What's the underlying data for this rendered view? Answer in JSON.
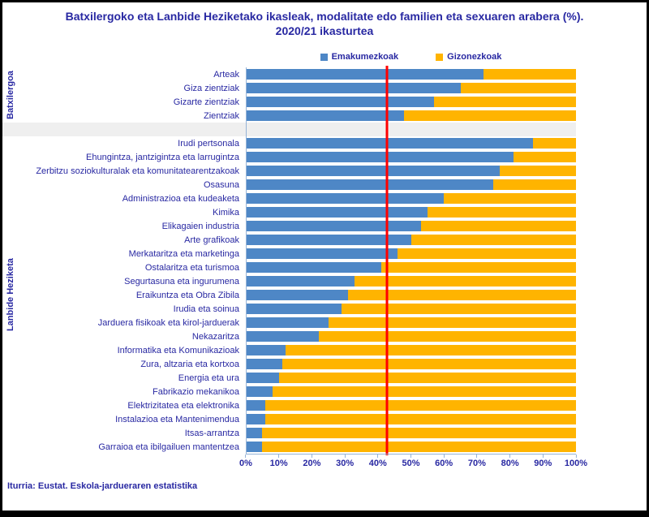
{
  "title": {
    "line1": "Batxilergoko eta Lanbide Heziketako ikasleak, modalitate edo familien eta sexuaren arabera (%).",
    "line2": "2020/21 ikasturtea"
  },
  "legend": [
    {
      "label": "Emakumezkoak",
      "color": "#4E87C6"
    },
    {
      "label": "Gizonezkoak",
      "color": "#FFB400"
    }
  ],
  "footer": "Iturria: Eustat. Eskola-jardueraren estatistika",
  "colors": {
    "text": "#2828A2",
    "axis": "#95B3D7",
    "reference_line": "#FF0000",
    "emakumezkoak": "#4E87C6",
    "gizonezkoak": "#FFB400"
  },
  "chart_data": {
    "type": "bar",
    "orientation": "horizontal",
    "stacked_percent": true,
    "title": "Batxilergoko eta Lanbide Heziketako ikasleak, modalitate edo familien eta sexuaren arabera (%). 2020/21 ikasturtea",
    "legend_position": "top",
    "series": [
      {
        "name": "Emakumezkoak",
        "color": "#4E87C6"
      },
      {
        "name": "Gizonezkoak",
        "color": "#FFB400"
      }
    ],
    "x_axis": {
      "min": 0,
      "max": 100,
      "ticks": [
        "0%",
        "10%",
        "20%",
        "30%",
        "40%",
        "50%",
        "60%",
        "70%",
        "80%",
        "90%",
        "100%"
      ]
    },
    "reference_line": {
      "value": 42.5,
      "color": "#FF0000"
    },
    "groups": [
      {
        "name": "Batxilergoa",
        "rows": [
          {
            "label": "Arteak",
            "emakumezkoak": 72,
            "gizonezkoak": 28
          },
          {
            "label": "Giza zientziak",
            "emakumezkoak": 65,
            "gizonezkoak": 35
          },
          {
            "label": "Gizarte zientziak",
            "emakumezkoak": 57,
            "gizonezkoak": 43
          },
          {
            "label": "Zientziak",
            "emakumezkoak": 48,
            "gizonezkoak": 52
          }
        ]
      },
      {
        "name": "Lanbide Heziketa",
        "rows": [
          {
            "label": "Irudi pertsonala",
            "emakumezkoak": 87,
            "gizonezkoak": 13
          },
          {
            "label": "Ehungintza, jantzigintza eta larrugintza",
            "emakumezkoak": 81,
            "gizonezkoak": 19
          },
          {
            "label": "Zerbitzu soziokulturalak eta komunitatearentzakoak",
            "emakumezkoak": 77,
            "gizonezkoak": 23
          },
          {
            "label": "Osasuna",
            "emakumezkoak": 75,
            "gizonezkoak": 25
          },
          {
            "label": "Administrazioa eta kudeaketa",
            "emakumezkoak": 60,
            "gizonezkoak": 40
          },
          {
            "label": "Kimika",
            "emakumezkoak": 55,
            "gizonezkoak": 45
          },
          {
            "label": "Elikagaien industria",
            "emakumezkoak": 53,
            "gizonezkoak": 47
          },
          {
            "label": "Arte grafikoak",
            "emakumezkoak": 50,
            "gizonezkoak": 50
          },
          {
            "label": "Merkataritza eta marketinga",
            "emakumezkoak": 46,
            "gizonezkoak": 54
          },
          {
            "label": "Ostalaritza eta turismoa",
            "emakumezkoak": 41,
            "gizonezkoak": 59
          },
          {
            "label": "Segurtasuna eta ingurumena",
            "emakumezkoak": 33,
            "gizonezkoak": 67
          },
          {
            "label": "Eraikuntza eta Obra Zibila",
            "emakumezkoak": 31,
            "gizonezkoak": 69
          },
          {
            "label": "Irudia eta soinua",
            "emakumezkoak": 29,
            "gizonezkoak": 71
          },
          {
            "label": "Jarduera fisikoak eta kirol-jarduerak",
            "emakumezkoak": 25,
            "gizonezkoak": 75
          },
          {
            "label": "Nekazaritza",
            "emakumezkoak": 22,
            "gizonezkoak": 78
          },
          {
            "label": "Informatika eta Komunikazioak",
            "emakumezkoak": 12,
            "gizonezkoak": 88
          },
          {
            "label": "Zura, altzaria eta kortxoa",
            "emakumezkoak": 11,
            "gizonezkoak": 89
          },
          {
            "label": "Energia eta ura",
            "emakumezkoak": 10,
            "gizonezkoak": 90
          },
          {
            "label": "Fabrikazio mekanikoa",
            "emakumezkoak": 8,
            "gizonezkoak": 92
          },
          {
            "label": "Elektrizitatea eta elektronika",
            "emakumezkoak": 6,
            "gizonezkoak": 94
          },
          {
            "label": "Instalazioa eta Mantenimendua",
            "emakumezkoak": 6,
            "gizonezkoak": 94
          },
          {
            "label": "Itsas-arrantza",
            "emakumezkoak": 5,
            "gizonezkoak": 95
          },
          {
            "label": "Garraioa eta ibilgailuen mantentzea",
            "emakumezkoak": 5,
            "gizonezkoak": 95
          }
        ]
      }
    ]
  }
}
